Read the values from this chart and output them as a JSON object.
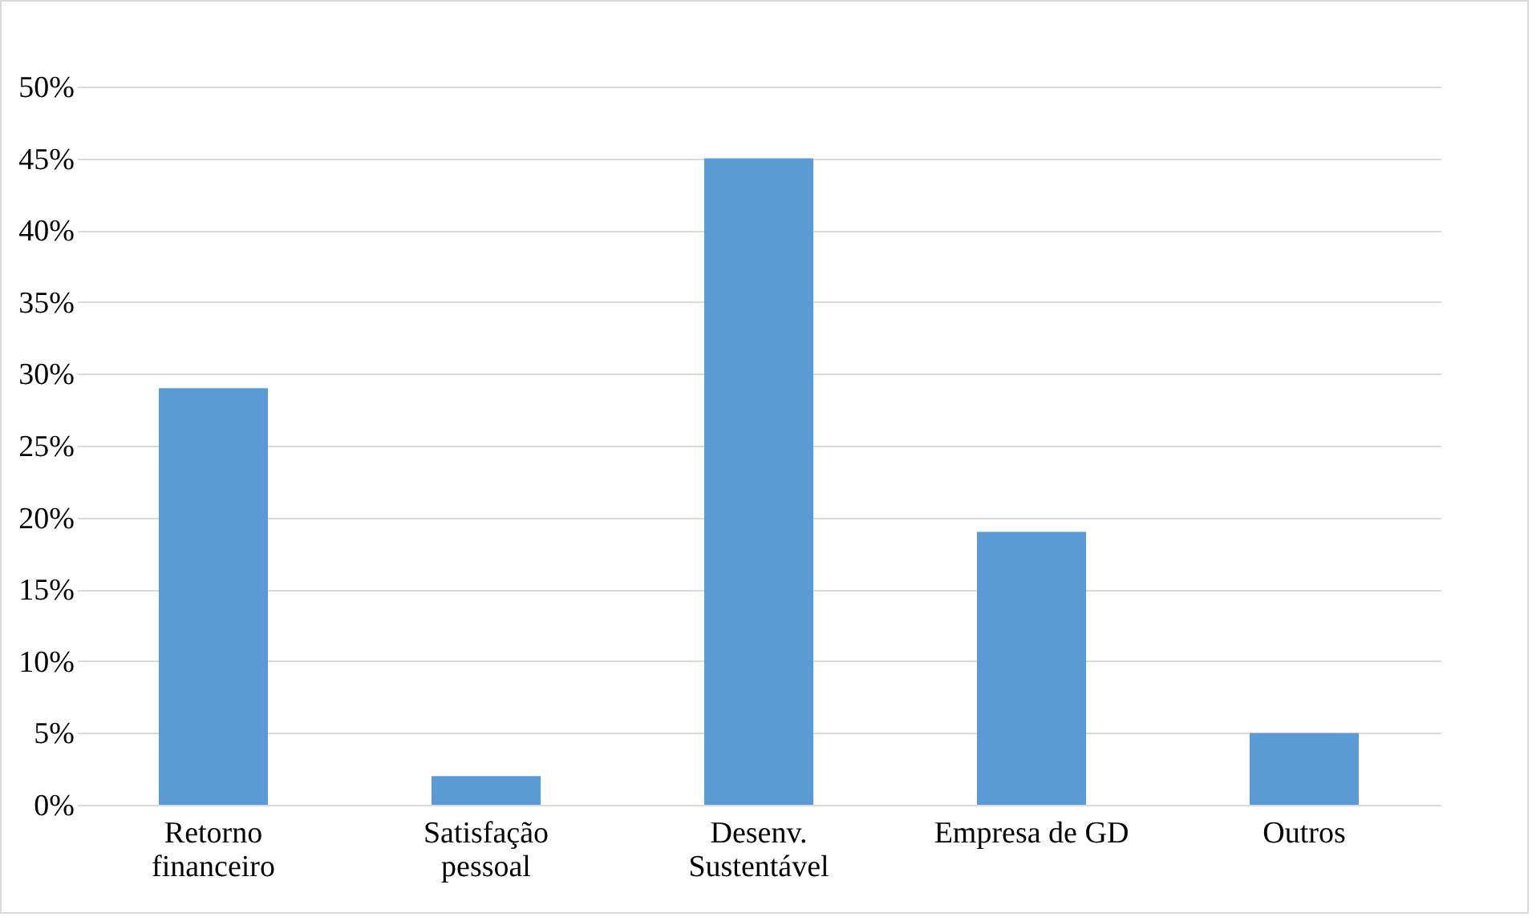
{
  "chart_data": {
    "type": "bar",
    "categories": [
      "Retorno financeiro",
      "Satisfação pessoal",
      "Desenv. Sustentável",
      "Empresa de GD",
      "Outros"
    ],
    "values": [
      29,
      2,
      45,
      19,
      5
    ],
    "color": "#5b9bd5",
    "ylim": [
      0,
      50
    ],
    "yticks": [
      {
        "value": 0,
        "label": "0%"
      },
      {
        "value": 5,
        "label": "5%"
      },
      {
        "value": 10,
        "label": "10%"
      },
      {
        "value": 15,
        "label": "15%"
      },
      {
        "value": 20,
        "label": "20%"
      },
      {
        "value": 25,
        "label": "25%"
      },
      {
        "value": 30,
        "label": "30%"
      },
      {
        "value": 35,
        "label": "35%"
      },
      {
        "value": 40,
        "label": "40%"
      },
      {
        "value": 45,
        "label": "45%"
      },
      {
        "value": 50,
        "label": "50%"
      }
    ],
    "grid": "y"
  }
}
